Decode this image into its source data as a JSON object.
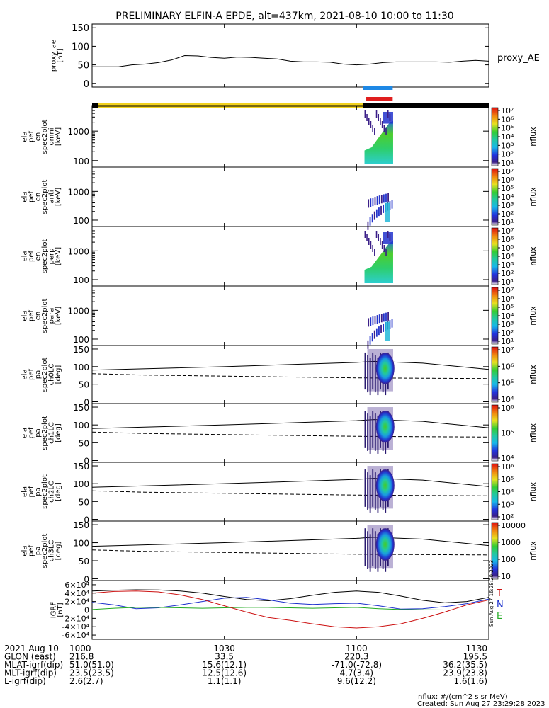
{
  "title": "PRELIMINARY ELFIN-A EPDE, alt=437km, 2021-08-10 10:00 to 11:30",
  "time_range_min": [
    0,
    90
  ],
  "tick_minutes": [
    0,
    30,
    60,
    90
  ],
  "tick_labels": [
    "1000",
    "1030",
    "1100",
    "1130"
  ],
  "chart_data": [
    {
      "type": "line",
      "panel": "proxy_ae",
      "ylabel_lines": [
        "proxy_ae",
        "[nT]"
      ],
      "legend": "proxy_AE",
      "yticks": [
        "0",
        "50",
        "100",
        "150"
      ],
      "ylim": [
        -10,
        160
      ],
      "series": [
        {
          "x": [
            0,
            3,
            6,
            9,
            12,
            15,
            18,
            21,
            24,
            27,
            30,
            33,
            36,
            39,
            42,
            45,
            48,
            51,
            54,
            57,
            60,
            63,
            66,
            69,
            72,
            75,
            78,
            81,
            84,
            87,
            90
          ],
          "y": [
            45,
            45,
            45,
            50,
            52,
            56,
            63,
            75,
            74,
            70,
            68,
            71,
            70,
            68,
            66,
            60,
            58,
            58,
            57,
            52,
            50,
            52,
            56,
            58,
            58,
            58,
            58,
            57,
            60,
            62,
            60
          ]
        }
      ]
    },
    {
      "type": "heatmap",
      "panel": "spec2plot_omni",
      "ylabel_lines": [
        "ela",
        "pef",
        "en",
        "spec2plot",
        "omni",
        "[keV]"
      ],
      "yticks": [
        "100",
        "1000"
      ],
      "ylim_kev": [
        60,
        7000
      ],
      "colorbar_ticks": [
        "10¹",
        "10²",
        "10³",
        "10⁴",
        "10⁵",
        "10⁶",
        "10⁷"
      ],
      "colorbar_label": "nflux"
    },
    {
      "type": "heatmap",
      "panel": "spec2plot_anti",
      "ylabel_lines": [
        "ela",
        "pef",
        "en",
        "spec2plot",
        "anti",
        "[keV]"
      ],
      "yticks": [
        "100",
        "1000"
      ],
      "colorbar_ticks": [
        "10¹",
        "10²",
        "10³",
        "10⁴",
        "10⁵",
        "10⁶",
        "10⁷"
      ],
      "colorbar_label": "nflux"
    },
    {
      "type": "heatmap",
      "panel": "spec2plot_perp",
      "ylabel_lines": [
        "ela",
        "pef",
        "en",
        "spec2plot",
        "perp",
        "[keV]"
      ],
      "yticks": [
        "100",
        "1000"
      ],
      "colorbar_ticks": [
        "10¹",
        "10²",
        "10³",
        "10⁴",
        "10⁵",
        "10⁶",
        "10⁷"
      ],
      "colorbar_label": "nflux"
    },
    {
      "type": "heatmap",
      "panel": "spec2plot_para",
      "ylabel_lines": [
        "ela",
        "pef",
        "en",
        "spec2plot",
        "para",
        "[keV]"
      ],
      "yticks": [
        "100",
        "1000"
      ],
      "colorbar_ticks": [
        "10¹",
        "10²",
        "10³",
        "10⁴",
        "10⁵",
        "10⁶",
        "10⁷"
      ],
      "colorbar_label": "nflux"
    },
    {
      "type": "heatmap",
      "panel": "spec2plot_ch0LC",
      "ylabel_lines": [
        "ela",
        "pef",
        "pa",
        "spec2plot",
        "ch0LC",
        "[deg]"
      ],
      "yticks": [
        "0",
        "50",
        "100",
        "150"
      ],
      "ylim_deg": [
        -5,
        160
      ],
      "colorbar_ticks": [
        "10⁴",
        "10⁵",
        "10⁶",
        "10⁷"
      ],
      "colorbar_label": "nflux"
    },
    {
      "type": "heatmap",
      "panel": "spec2plot_ch1LC",
      "ylabel_lines": [
        "ela",
        "pef",
        "pa",
        "spec2plot",
        "ch1LC",
        "[deg]"
      ],
      "yticks": [
        "0",
        "50",
        "100",
        "150"
      ],
      "colorbar_ticks": [
        "10⁴",
        "10⁵",
        "10⁶"
      ],
      "colorbar_label": "nflux"
    },
    {
      "type": "heatmap",
      "panel": "spec2plot_ch2LC",
      "ylabel_lines": [
        "ela",
        "pef",
        "pa",
        "spec2plot",
        "ch2LC",
        "[deg]"
      ],
      "yticks": [
        "0",
        "50",
        "100",
        "150"
      ],
      "colorbar_ticks": [
        "10²",
        "10³",
        "10⁴",
        "10⁵",
        "10⁶"
      ],
      "colorbar_label": "nflux"
    },
    {
      "type": "heatmap",
      "panel": "spec2plot_ch3LC",
      "ylabel_lines": [
        "ela",
        "pef",
        "pa",
        "spec2plot",
        "ch3LC",
        "[deg]"
      ],
      "yticks": [
        "0",
        "50",
        "100",
        "150"
      ],
      "colorbar_ticks": [
        "10",
        "100",
        "1000",
        "10000"
      ],
      "colorbar_label": "nflux"
    },
    {
      "type": "line",
      "panel": "igrf",
      "ylabel_lines": [
        "IGRF",
        "[nT]"
      ],
      "yticks": [
        "-6×10⁴",
        "-4×10⁴",
        "-2×10⁴",
        "0",
        "2×10⁴",
        "4×10⁴",
        "6×10⁴"
      ],
      "ylim": [
        -70000,
        70000
      ],
      "legend_labels": [
        "T",
        "N",
        "E"
      ],
      "series": [
        {
          "name": "T",
          "color": "#000000",
          "x": [
            0,
            5,
            10,
            15,
            20,
            25,
            30,
            35,
            40,
            45,
            50,
            55,
            60,
            65,
            70,
            75,
            80,
            85,
            90
          ],
          "y": [
            45000,
            47000,
            48000,
            47500,
            45000,
            40000,
            32000,
            25000,
            22000,
            27000,
            35000,
            42000,
            45000,
            42000,
            33000,
            23000,
            17000,
            20000,
            30000
          ]
        },
        {
          "name": "N",
          "color": "#1a2ecc",
          "x": [
            0,
            5,
            10,
            15,
            20,
            25,
            30,
            35,
            40,
            45,
            50,
            55,
            60,
            65,
            70,
            75,
            80,
            85,
            90
          ],
          "y": [
            18000,
            12000,
            3000,
            5000,
            12000,
            20000,
            28000,
            30000,
            24000,
            16000,
            13000,
            15000,
            16000,
            10000,
            2000,
            3000,
            8000,
            15000,
            26000
          ]
        },
        {
          "name": "E",
          "color": "#22aa22",
          "x": [
            0,
            5,
            10,
            15,
            20,
            25,
            30,
            35,
            40,
            45,
            50,
            55,
            60,
            65,
            70,
            75,
            80,
            85,
            90
          ],
          "y": [
            1000,
            4000,
            6000,
            6000,
            5000,
            4000,
            5000,
            6000,
            6000,
            5000,
            4000,
            5000,
            6000,
            3000,
            1000,
            500,
            0,
            0,
            0
          ]
        },
        {
          "name": "red",
          "color": "#cc1111",
          "x": [
            0,
            5,
            10,
            15,
            20,
            25,
            30,
            35,
            40,
            45,
            50,
            55,
            60,
            65,
            70,
            75,
            80,
            85,
            90
          ],
          "y": [
            40000,
            44000,
            45000,
            43000,
            36000,
            25000,
            10000,
            -5000,
            -18000,
            -25000,
            -33000,
            -40000,
            -43000,
            -40000,
            -33000,
            -20000,
            -5000,
            12000,
            24000
          ]
        }
      ]
    }
  ],
  "footer": {
    "rows": [
      {
        "label": "2021 Aug 10",
        "values": [
          "1000",
          "1030",
          "1100",
          "1130"
        ]
      },
      {
        "label": "GLON (east)",
        "values": [
          "216.8",
          "33.5",
          "220.3",
          "195.5"
        ]
      },
      {
        "label": "MLAT-igrf(dip)",
        "values": [
          "51.0(51.0)",
          "15.6(12.1)",
          "-71.0(-72.8)",
          "36.2(35.5)"
        ]
      },
      {
        "label": "MLT-igrf(dip)",
        "values": [
          "23.5(23.5)",
          "12.5(12.6)",
          "4.7(3.4)",
          "23.9(23.8)"
        ]
      },
      {
        "label": "L-igrf(dip)",
        "values": [
          "2.6(2.7)",
          "1.1(1.1)",
          "9.6(12.2)",
          "1.6(1.6)"
        ]
      }
    ],
    "units_note": "nflux: #/(cm^2 s sr MeV)",
    "created": "Created: Sun Aug 27 23:29:28 2023",
    "side_stamp": "Sun Aug 27 16:28:20 2023"
  },
  "colors": {
    "sunlit_bar": "#f2d21e",
    "shadow_bar": "#000000",
    "top_marker_blue": "#1e88e5",
    "top_marker_red": "#e01e1e",
    "sza_line": "#000000"
  }
}
